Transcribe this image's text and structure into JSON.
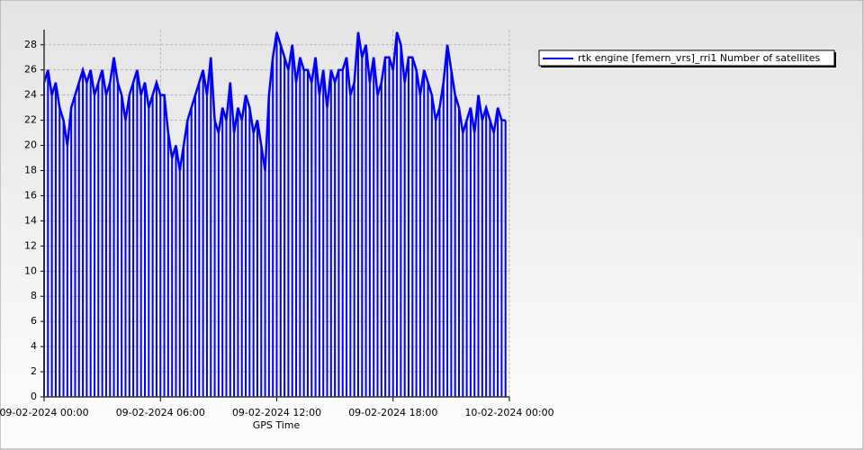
{
  "chart_data": {
    "type": "impulse",
    "x_label": "GPS Time",
    "x": [
      0,
      0.2,
      0.4,
      0.6,
      0.8,
      1,
      1.2,
      1.4,
      1.6,
      1.8,
      2,
      2.2,
      2.4,
      2.6,
      2.8,
      3,
      3.2,
      3.4,
      3.6,
      3.8,
      4,
      4.2,
      4.4,
      4.6,
      4.8,
      5,
      5.2,
      5.4,
      5.6,
      5.8,
      6,
      6.2,
      6.4,
      6.6,
      6.8,
      7,
      7.2,
      7.4,
      7.6,
      7.8,
      8,
      8.2,
      8.4,
      8.6,
      8.8,
      9,
      9.2,
      9.4,
      9.6,
      9.8,
      10,
      10.2,
      10.4,
      10.6,
      10.8,
      11,
      11.2,
      11.4,
      11.6,
      11.8,
      12,
      12.2,
      12.4,
      12.6,
      12.8,
      13,
      13.2,
      13.4,
      13.6,
      13.8,
      14,
      14.2,
      14.4,
      14.6,
      14.8,
      15,
      15.2,
      15.4,
      15.6,
      15.8,
      16,
      16.2,
      16.4,
      16.6,
      16.8,
      17,
      17.2,
      17.4,
      17.6,
      17.8,
      18,
      18.2,
      18.4,
      18.6,
      18.8,
      19,
      19.2,
      19.4,
      19.6,
      19.8,
      20,
      20.2,
      20.4,
      20.6,
      20.8,
      21,
      21.2,
      21.4,
      21.6,
      21.8,
      22,
      22.2,
      22.4,
      22.6,
      22.8,
      23,
      23.2,
      23.4,
      23.6,
      23.8
    ],
    "series": [
      {
        "name": "rtk engine [femern_vrs]_rri1 Number of satellites",
        "color": "#0000ff",
        "values": [
          25,
          26,
          24,
          25,
          23,
          22,
          20,
          23,
          24,
          25,
          26,
          25,
          26,
          24,
          25,
          26,
          24,
          25,
          27,
          25,
          24,
          22,
          24,
          25,
          26,
          24,
          25,
          23,
          24,
          25,
          24,
          24,
          21,
          19,
          20,
          18,
          20,
          22,
          23,
          24,
          25,
          26,
          24,
          27,
          22,
          21,
          23,
          22,
          25,
          21,
          23,
          22,
          24,
          23,
          21,
          22,
          20,
          18,
          24,
          27,
          29,
          28,
          27,
          26,
          28,
          25,
          27,
          26,
          26,
          25,
          27,
          24,
          26,
          23,
          26,
          25,
          26,
          26,
          27,
          24,
          25,
          29,
          27,
          28,
          25,
          27,
          24,
          25,
          27,
          27,
          26,
          29,
          28,
          25,
          27,
          27,
          26,
          24,
          26,
          25,
          24,
          22,
          23,
          25,
          28,
          26,
          24,
          23,
          21,
          22,
          23,
          21,
          24,
          22,
          23,
          22,
          21,
          23,
          22,
          22
        ]
      }
    ],
    "xlim": [
      0,
      24
    ],
    "xticks": [
      {
        "value": 0,
        "label": "09-02-2024 00:00"
      },
      {
        "value": 6,
        "label": "09-02-2024 06:00"
      },
      {
        "value": 12,
        "label": "09-02-2024 12:00"
      },
      {
        "value": 18,
        "label": "09-02-2024 18:00"
      },
      {
        "value": 24,
        "label": "10-02-2024 00:00"
      }
    ],
    "ylim": [
      0,
      29.2
    ],
    "yticks": [
      0,
      2,
      4,
      6,
      8,
      10,
      12,
      14,
      16,
      18,
      20,
      22,
      24,
      26,
      28
    ],
    "grid": true,
    "legend": "right"
  }
}
